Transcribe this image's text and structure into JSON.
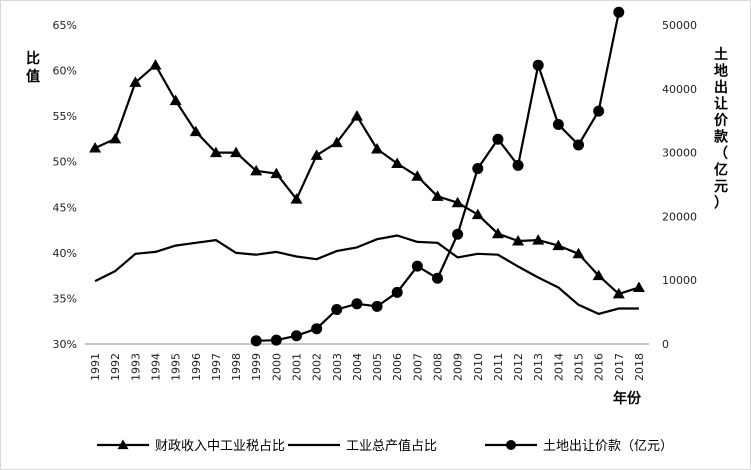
{
  "chart_data": {
    "type": "line",
    "x": [
      "1991",
      "1992",
      "1993",
      "1994",
      "1995",
      "1996",
      "1997",
      "1998",
      "1999",
      "2000",
      "2001",
      "2002",
      "2003",
      "2004",
      "2005",
      "2006",
      "2007",
      "2008",
      "2009",
      "2010",
      "2011",
      "2012",
      "2013",
      "2014",
      "2015",
      "2016",
      "2017",
      "2018"
    ],
    "xlabel": "年份",
    "ylabel_left": "比值",
    "ylabel_right": "土地出让价款（亿元）",
    "ylim_left": [
      30,
      65
    ],
    "ylim_right": [
      0,
      50000
    ],
    "yticks_left": [
      "30%",
      "35%",
      "40%",
      "45%",
      "50%",
      "55%",
      "60%",
      "65%"
    ],
    "yticks_right": [
      "0",
      "10000",
      "20000",
      "30000",
      "40000",
      "50000"
    ],
    "series": [
      {
        "name": "财政收入中工业税占比",
        "axis": "left",
        "marker": "triangle",
        "values": [
          51.5,
          52.5,
          58.7,
          60.6,
          56.7,
          53.3,
          51.0,
          51.0,
          49.0,
          48.7,
          45.9,
          50.7,
          52.1,
          55.0,
          51.4,
          49.8,
          48.4,
          46.2,
          45.5,
          44.2,
          42.1,
          41.3,
          41.4,
          40.8,
          39.9,
          37.5,
          35.5,
          36.2
        ]
      },
      {
        "name": "工业总产值占比",
        "axis": "left",
        "marker": "none",
        "values": [
          36.9,
          38.0,
          39.9,
          40.1,
          40.8,
          41.1,
          41.4,
          40.0,
          39.8,
          40.1,
          39.6,
          39.3,
          40.2,
          40.6,
          41.5,
          41.9,
          41.2,
          41.1,
          39.5,
          39.9,
          39.8,
          38.5,
          37.3,
          36.2,
          34.3,
          33.3,
          33.9,
          33.9
        ]
      },
      {
        "name": "土地出让价款（亿元）",
        "axis": "right",
        "marker": "circle",
        "values": [
          null,
          null,
          null,
          null,
          null,
          null,
          null,
          null,
          500,
          600,
          1300,
          2400,
          5400,
          6300,
          5900,
          8100,
          12200,
          10300,
          17200,
          27500,
          32100,
          28000,
          43700,
          34400,
          31200,
          36500,
          52000,
          null
        ]
      }
    ],
    "legend_position": "bottom"
  }
}
